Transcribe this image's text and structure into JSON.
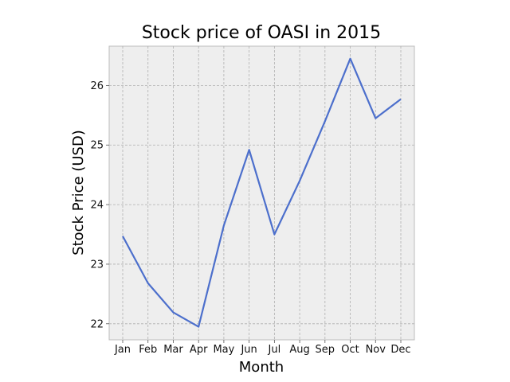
{
  "chart_data": {
    "type": "line",
    "title": "Stock price of OASI in 2015",
    "xlabel": "Month",
    "ylabel": "Stock Price (USD)",
    "categories": [
      "Jan",
      "Feb",
      "Mar",
      "Apr",
      "May",
      "Jun",
      "Jul",
      "Aug",
      "Sep",
      "Oct",
      "Nov",
      "Dec"
    ],
    "series": [
      {
        "values": [
          23.47,
          22.68,
          22.19,
          21.95,
          23.65,
          24.92,
          23.5,
          24.4,
          25.4,
          26.45,
          25.45,
          25.77
        ],
        "color": "#4c6fcc"
      }
    ],
    "ylim": [
      21.73,
      26.66
    ],
    "yticks": [
      22,
      23,
      24,
      25,
      26
    ],
    "grid": true,
    "legend": "none",
    "background_color": "#eeeeee"
  }
}
